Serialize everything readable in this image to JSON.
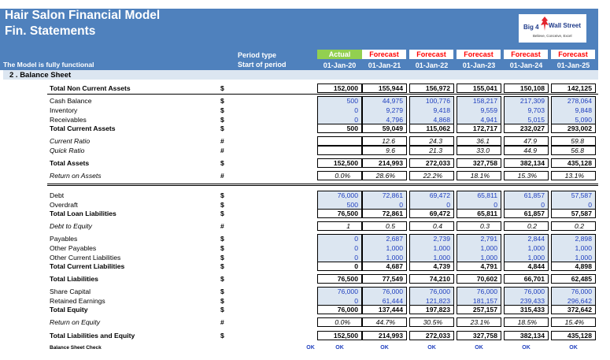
{
  "header": {
    "title": "Hair Salon Financial Model",
    "subtitle": "Fin. Statements",
    "functional": "The Model is fully functional",
    "period_type_label": "Period type",
    "start_label": "Start of period",
    "logo_line1": "Big 4",
    "logo_line2": "Wall Street",
    "logo_tagline": "Believe, Conceive, Excel",
    "colors": {
      "header_blue": "#4f81bd",
      "actual_green": "#92d050",
      "forecast_red": "#ff0000"
    }
  },
  "periods": [
    {
      "type": "Actual",
      "date": "01-Jan-20"
    },
    {
      "type": "Forecast",
      "date": "01-Jan-21"
    },
    {
      "type": "Forecast",
      "date": "01-Jan-22"
    },
    {
      "type": "Forecast",
      "date": "01-Jan-23"
    },
    {
      "type": "Forecast",
      "date": "01-Jan-24"
    },
    {
      "type": "Forecast",
      "date": "01-Jan-25"
    }
  ],
  "section": {
    "title": "2 . Balance Sheet"
  },
  "rows": [
    {
      "label": "Total Non Current Assets",
      "unit": "$",
      "values": [
        "152,000",
        "155,944",
        "156,972",
        "155,041",
        "150,108",
        "142,125"
      ]
    },
    {
      "label": "Cash Balance",
      "unit": "$",
      "values": [
        "500",
        "44,975",
        "100,776",
        "158,217",
        "217,309",
        "278,064"
      ]
    },
    {
      "label": "Inventory",
      "unit": "$",
      "values": [
        "0",
        "9,279",
        "9,418",
        "9,559",
        "9,703",
        "9,848"
      ]
    },
    {
      "label": "Receivables",
      "unit": "$",
      "values": [
        "0",
        "4,796",
        "4,868",
        "4,941",
        "5,015",
        "5,090"
      ]
    },
    {
      "label": "Total Current Assets",
      "unit": "$",
      "values": [
        "500",
        "59,049",
        "115,062",
        "172,717",
        "232,027",
        "293,002"
      ]
    },
    {
      "label": "Current Ratio",
      "unit": "#",
      "values": [
        "",
        "12.6",
        "24.3",
        "36.1",
        "47.9",
        "59.8"
      ]
    },
    {
      "label": "Quick Ratio",
      "unit": "#",
      "values": [
        "",
        "9.6",
        "21.3",
        "33.0",
        "44.9",
        "56.8"
      ]
    },
    {
      "label": "Total Assets",
      "unit": "$",
      "values": [
        "152,500",
        "214,993",
        "272,033",
        "327,758",
        "382,134",
        "435,128"
      ]
    },
    {
      "label": "Return on Assets",
      "unit": "#",
      "values": [
        "0.0%",
        "28.6%",
        "22.2%",
        "18.1%",
        "15.3%",
        "13.1%"
      ]
    },
    {
      "label": "Debt",
      "unit": "$",
      "values": [
        "76,000",
        "72,861",
        "69,472",
        "65,811",
        "61,857",
        "57,587"
      ]
    },
    {
      "label": "Overdraft",
      "unit": "$",
      "values": [
        "500",
        "0",
        "0",
        "0",
        "0",
        "0"
      ]
    },
    {
      "label": "Total Loan Liabilities",
      "unit": "$",
      "values": [
        "76,500",
        "72,861",
        "69,472",
        "65,811",
        "61,857",
        "57,587"
      ]
    },
    {
      "label": "Debt to Equity",
      "unit": "#",
      "values": [
        "1",
        "0.5",
        "0.4",
        "0.3",
        "0.2",
        "0.2"
      ]
    },
    {
      "label": "Payables",
      "unit": "$",
      "values": [
        "0",
        "2,687",
        "2,739",
        "2,791",
        "2,844",
        "2,898"
      ]
    },
    {
      "label": "Other  Payables",
      "unit": "$",
      "values": [
        "0",
        "1,000",
        "1,000",
        "1,000",
        "1,000",
        "1,000"
      ]
    },
    {
      "label": "Other Current Liabilities",
      "unit": "$",
      "values": [
        "0",
        "1,000",
        "1,000",
        "1,000",
        "1,000",
        "1,000"
      ]
    },
    {
      "label": "Total Current Liabilities",
      "unit": "$",
      "values": [
        "0",
        "4,687",
        "4,739",
        "4,791",
        "4,844",
        "4,898"
      ]
    },
    {
      "label": "Total Liabilities",
      "unit": "$",
      "values": [
        "76,500",
        "77,549",
        "74,210",
        "70,602",
        "66,701",
        "62,485"
      ]
    },
    {
      "label": "Share Capital",
      "unit": "$",
      "values": [
        "76,000",
        "76,000",
        "76,000",
        "76,000",
        "76,000",
        "76,000"
      ]
    },
    {
      "label": "Retained Earnings",
      "unit": "$",
      "values": [
        "0",
        "61,444",
        "121,823",
        "181,157",
        "239,433",
        "296,642"
      ]
    },
    {
      "label": "Total Equity",
      "unit": "$",
      "values": [
        "76,000",
        "137,444",
        "197,823",
        "257,157",
        "315,433",
        "372,642"
      ]
    },
    {
      "label": "Return on Equity",
      "unit": "#",
      "values": [
        "0.0%",
        "44.7%",
        "30.5%",
        "23.1%",
        "18.5%",
        "15.4%"
      ]
    },
    {
      "label": "Total Liabilities and Equity",
      "unit": "$",
      "values": [
        "152,500",
        "214,993",
        "272,033",
        "327,758",
        "382,134",
        "435,128"
      ]
    }
  ],
  "check": {
    "label": "Balance Sheet Check",
    "summary": "OK",
    "values": [
      "OK",
      "OK",
      "OK",
      "OK",
      "OK",
      "OK"
    ]
  }
}
